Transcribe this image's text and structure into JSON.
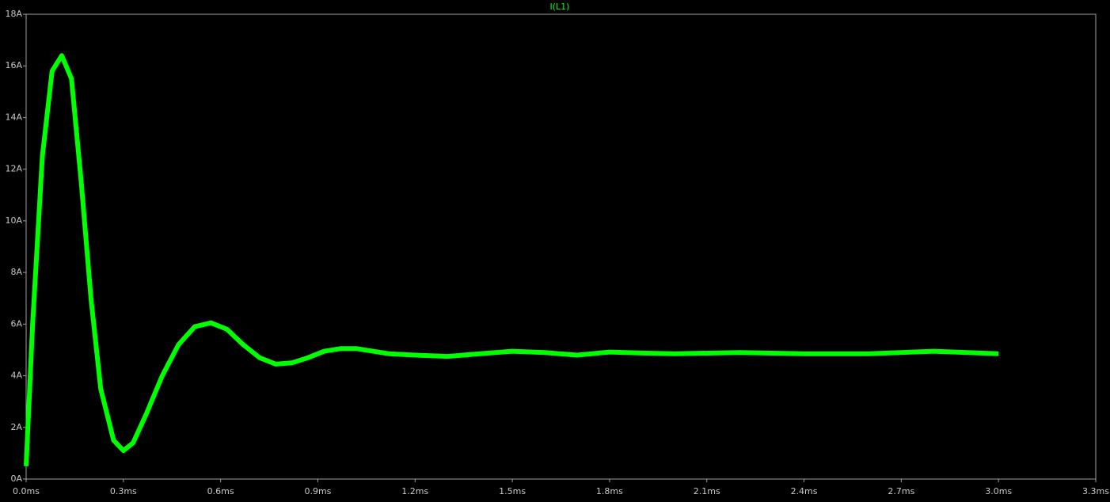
{
  "chart_data": {
    "type": "line",
    "title": "I(L1)",
    "series": [
      {
        "name": "I(L1)",
        "color": "#00ff00",
        "x": [
          0,
          0.02,
          0.05,
          0.08,
          0.11,
          0.14,
          0.17,
          0.2,
          0.23,
          0.27,
          0.3,
          0.33,
          0.37,
          0.42,
          0.47,
          0.52,
          0.57,
          0.62,
          0.67,
          0.72,
          0.77,
          0.82,
          0.87,
          0.92,
          0.97,
          1.02,
          1.07,
          1.12,
          1.2,
          1.3,
          1.4,
          1.5,
          1.6,
          1.7,
          1.8,
          1.9,
          2.0,
          2.2,
          2.4,
          2.6,
          2.8,
          3.0
        ],
        "values": [
          0.5,
          6,
          12.5,
          15.8,
          16.4,
          15.5,
          11.5,
          7,
          3.5,
          1.5,
          1.1,
          1.4,
          2.5,
          4,
          5.2,
          5.9,
          6.05,
          5.8,
          5.2,
          4.7,
          4.45,
          4.5,
          4.7,
          4.95,
          5.05,
          5.05,
          4.95,
          4.85,
          4.8,
          4.75,
          4.85,
          4.95,
          4.9,
          4.8,
          4.92,
          4.88,
          4.85,
          4.9,
          4.85,
          4.85,
          4.95,
          4.85
        ]
      }
    ],
    "xlim": [
      0,
      3.3
    ],
    "xticks": [
      {
        "value": 0,
        "label": "0.0ms"
      },
      {
        "value": 0.3,
        "label": "0.3ms"
      },
      {
        "value": 0.6,
        "label": "0.6ms"
      },
      {
        "value": 0.9,
        "label": "0.9ms"
      },
      {
        "value": 1.2,
        "label": "1.2ms"
      },
      {
        "value": 1.5,
        "label": "1.5ms"
      },
      {
        "value": 1.8,
        "label": "1.8ms"
      },
      {
        "value": 2.1,
        "label": "2.1ms"
      },
      {
        "value": 2.4,
        "label": "2.4ms"
      },
      {
        "value": 2.7,
        "label": "2.7ms"
      },
      {
        "value": 3.0,
        "label": "3.0ms"
      },
      {
        "value": 3.3,
        "label": "3.3ms"
      }
    ],
    "ylim": [
      0,
      18
    ],
    "yticks": [
      {
        "value": 0,
        "label": "0A"
      },
      {
        "value": 2,
        "label": "2A"
      },
      {
        "value": 4,
        "label": "4A"
      },
      {
        "value": 6,
        "label": "6A"
      },
      {
        "value": 8,
        "label": "8A"
      },
      {
        "value": 10,
        "label": "10A"
      },
      {
        "value": 12,
        "label": "12A"
      },
      {
        "value": 14,
        "label": "14A"
      },
      {
        "value": 16,
        "label": "16A"
      },
      {
        "value": 18,
        "label": "18A"
      }
    ],
    "grid": false
  }
}
